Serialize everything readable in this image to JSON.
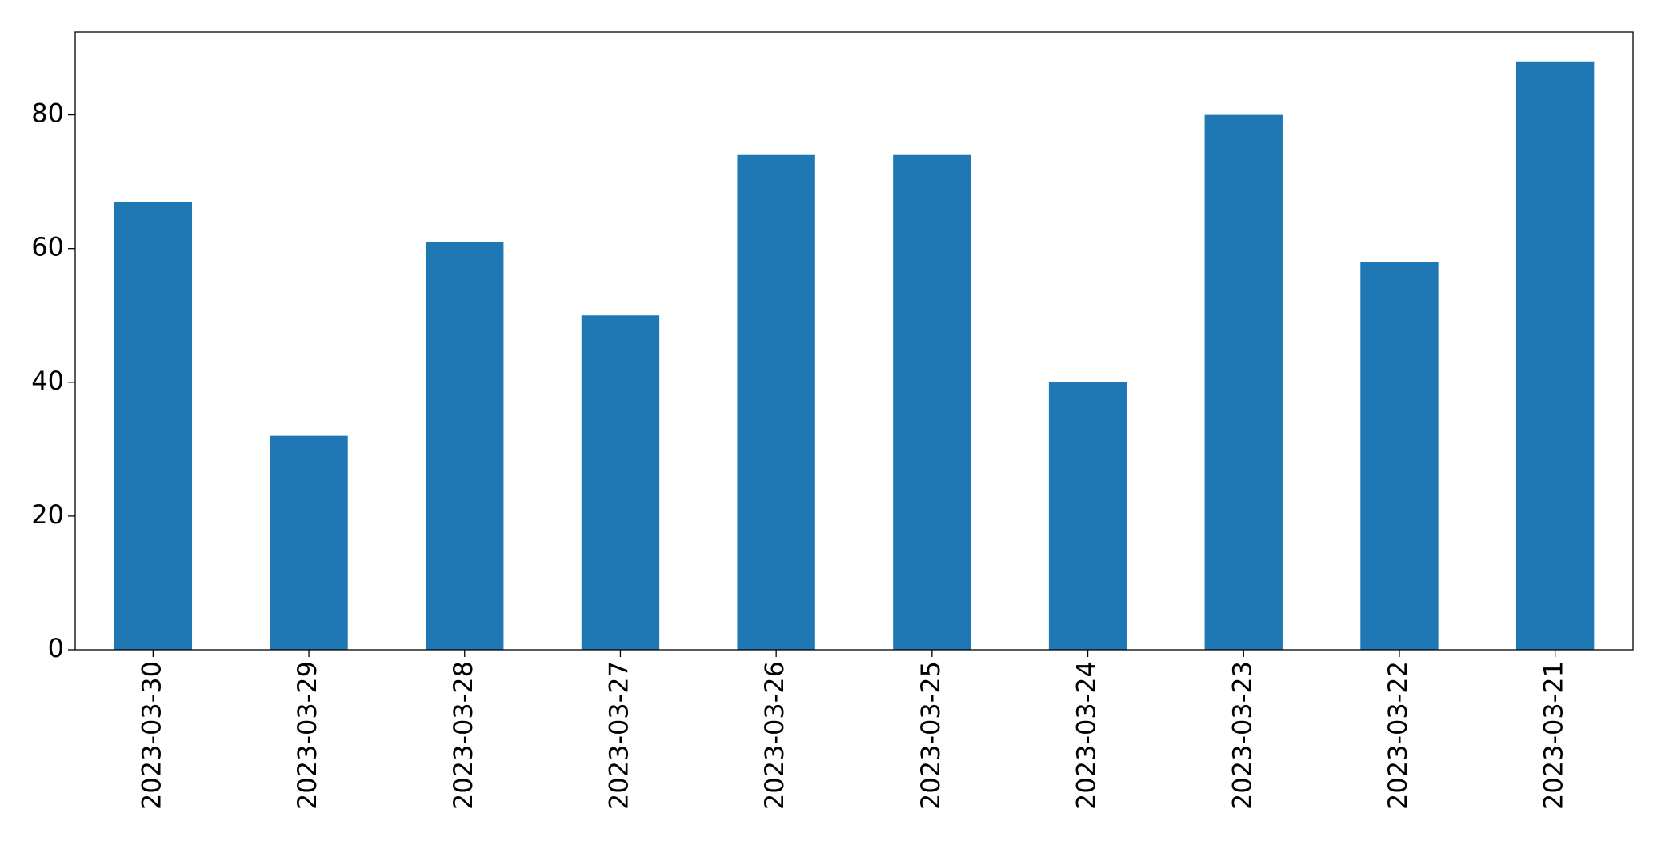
{
  "chart_data": {
    "type": "bar",
    "categories": [
      "2023-03-30",
      "2023-03-29",
      "2023-03-28",
      "2023-03-27",
      "2023-03-26",
      "2023-03-25",
      "2023-03-24",
      "2023-03-23",
      "2023-03-22",
      "2023-03-21"
    ],
    "values": [
      67,
      32,
      61,
      50,
      74,
      74,
      40,
      80,
      58,
      88
    ],
    "color": "#1f77b4",
    "ylim": [
      0,
      92.4
    ],
    "yticks": [
      0,
      20,
      40,
      60,
      80
    ],
    "grid": false
  }
}
